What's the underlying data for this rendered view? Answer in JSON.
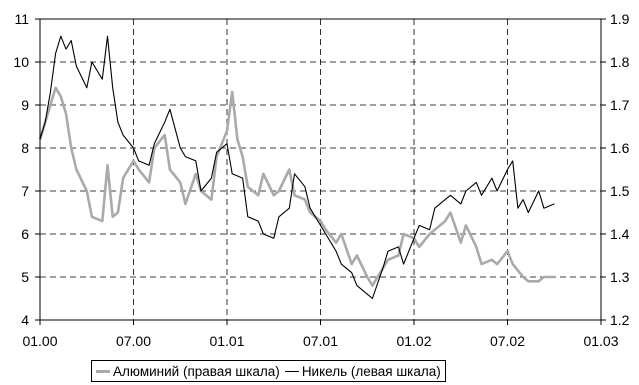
{
  "chart_data": {
    "type": "line",
    "title": "",
    "x_ticks": [
      "01.00",
      "07.00",
      "01.01",
      "07.01",
      "01.02",
      "07.02",
      "01.03"
    ],
    "y_left": {
      "ticks": [
        4,
        5,
        6,
        7,
        8,
        9,
        10,
        11
      ],
      "range": [
        4,
        11
      ]
    },
    "y_right": {
      "ticks": [
        1.2,
        1.3,
        1.4,
        1.5,
        1.6,
        1.7,
        1.8,
        1.9
      ],
      "range": [
        1.2,
        1.9
      ]
    },
    "grid": "dashed",
    "legend_position": "bottom",
    "series": [
      {
        "name": "Алюминий (правая шкала)",
        "axis": "right",
        "color": "#aaaaaa",
        "points": [
          [
            "01.00",
            1.62
          ],
          [
            "01.00+",
            1.66
          ],
          [
            "02.00",
            1.74
          ],
          [
            "02.00+",
            1.72
          ],
          [
            "02.00++",
            1.68
          ],
          [
            "03.00",
            1.6
          ],
          [
            "03.00+",
            1.55
          ],
          [
            "04.00",
            1.5
          ],
          [
            "04.00+",
            1.44
          ],
          [
            "05.00",
            1.43
          ],
          [
            "05.00+",
            1.56
          ],
          [
            "05.00++",
            1.44
          ],
          [
            "06.00",
            1.45
          ],
          [
            "06.00+",
            1.53
          ],
          [
            "07.00",
            1.57
          ],
          [
            "07.00+",
            1.55
          ],
          [
            "08.00",
            1.52
          ],
          [
            "08.00+",
            1.6
          ],
          [
            "09.00",
            1.63
          ],
          [
            "09.00+",
            1.55
          ],
          [
            "10.00",
            1.52
          ],
          [
            "10.00+",
            1.47
          ],
          [
            "11.00",
            1.54
          ],
          [
            "11.00+",
            1.5
          ],
          [
            "12.00",
            1.48
          ],
          [
            "12.00+",
            1.58
          ],
          [
            "01.01",
            1.64
          ],
          [
            "01.01+",
            1.73
          ],
          [
            "01.01++",
            1.62
          ],
          [
            "02.01",
            1.58
          ],
          [
            "02.01+",
            1.51
          ],
          [
            "03.01",
            1.49
          ],
          [
            "03.01+",
            1.54
          ],
          [
            "04.01",
            1.49
          ],
          [
            "04.01+",
            1.5
          ],
          [
            "05.01",
            1.55
          ],
          [
            "05.01+",
            1.49
          ],
          [
            "06.01",
            1.48
          ],
          [
            "06.01+",
            1.45
          ],
          [
            "07.01",
            1.43
          ],
          [
            "07.01+",
            1.41
          ],
          [
            "08.01",
            1.38
          ],
          [
            "08.01+",
            1.4
          ],
          [
            "09.01",
            1.33
          ],
          [
            "09.01+",
            1.35
          ],
          [
            "10.01",
            1.3
          ],
          [
            "10.01+",
            1.28
          ],
          [
            "11.01",
            1.32
          ],
          [
            "11.01+",
            1.34
          ],
          [
            "12.01",
            1.35
          ],
          [
            "12.01+",
            1.4
          ],
          [
            "01.02",
            1.39
          ],
          [
            "01.02+",
            1.37
          ],
          [
            "02.02",
            1.4
          ],
          [
            "02.02+",
            1.41
          ],
          [
            "03.02",
            1.43
          ],
          [
            "03.02+",
            1.45
          ],
          [
            "04.02",
            1.38
          ],
          [
            "04.02+",
            1.42
          ],
          [
            "05.02",
            1.37
          ],
          [
            "05.02+",
            1.33
          ],
          [
            "06.02",
            1.34
          ],
          [
            "06.02+",
            1.33
          ],
          [
            "07.02",
            1.36
          ],
          [
            "07.02+",
            1.33
          ],
          [
            "08.02",
            1.3
          ],
          [
            "08.02+",
            1.29
          ],
          [
            "09.02",
            1.29
          ],
          [
            "09.02+",
            1.3
          ],
          [
            "10.02",
            1.3
          ]
        ]
      },
      {
        "name": "Никель (левая шкала)",
        "axis": "left",
        "color": "#000000",
        "points": [
          [
            "01.00",
            8.2
          ],
          [
            "01.00+",
            8.6
          ],
          [
            "01.00++",
            9.3
          ],
          [
            "02.00",
            10.2
          ],
          [
            "02.00+",
            10.6
          ],
          [
            "02.00++",
            10.3
          ],
          [
            "03.00",
            10.5
          ],
          [
            "03.00+",
            9.9
          ],
          [
            "04.00",
            9.4
          ],
          [
            "04.00+",
            10.0
          ],
          [
            "05.00",
            9.6
          ],
          [
            "05.00+",
            10.6
          ],
          [
            "05.00++",
            9.4
          ],
          [
            "06.00",
            8.6
          ],
          [
            "06.00+",
            8.3
          ],
          [
            "07.00",
            8.0
          ],
          [
            "07.00+",
            7.7
          ],
          [
            "08.00",
            7.6
          ],
          [
            "08.00+",
            8.1
          ],
          [
            "09.00",
            8.6
          ],
          [
            "09.00+",
            8.9
          ],
          [
            "10.00",
            8.0
          ],
          [
            "10.00+",
            7.8
          ],
          [
            "11.00",
            7.7
          ],
          [
            "11.00+",
            7.0
          ],
          [
            "12.00",
            7.3
          ],
          [
            "12.00+",
            7.9
          ],
          [
            "01.01",
            8.1
          ],
          [
            "01.01+",
            7.4
          ],
          [
            "02.01",
            7.3
          ],
          [
            "02.01+",
            6.4
          ],
          [
            "03.01",
            6.3
          ],
          [
            "03.01+",
            6.0
          ],
          [
            "04.01",
            5.9
          ],
          [
            "04.01+",
            6.4
          ],
          [
            "05.01",
            6.6
          ],
          [
            "05.01+",
            7.4
          ],
          [
            "06.01",
            7.1
          ],
          [
            "06.01+",
            6.6
          ],
          [
            "07.01",
            6.2
          ],
          [
            "07.01+",
            6.0
          ],
          [
            "08.01",
            5.6
          ],
          [
            "08.01+",
            5.3
          ],
          [
            "09.01",
            5.1
          ],
          [
            "09.01+",
            4.8
          ],
          [
            "10.01",
            4.6
          ],
          [
            "10.01+",
            4.5
          ],
          [
            "11.01",
            5.2
          ],
          [
            "11.01+",
            5.6
          ],
          [
            "12.01",
            5.7
          ],
          [
            "12.01+",
            5.3
          ],
          [
            "01.02",
            5.9
          ],
          [
            "01.02+",
            6.2
          ],
          [
            "02.02",
            6.1
          ],
          [
            "02.02+",
            6.6
          ],
          [
            "03.02",
            6.8
          ],
          [
            "03.02+",
            6.9
          ],
          [
            "04.02",
            6.7
          ],
          [
            "04.02+",
            7.0
          ],
          [
            "05.02",
            7.2
          ],
          [
            "05.02+",
            6.9
          ],
          [
            "06.02",
            7.3
          ],
          [
            "06.02+",
            7.0
          ],
          [
            "07.02",
            7.5
          ],
          [
            "07.02+",
            7.7
          ],
          [
            "07.02++",
            6.6
          ],
          [
            "08.02",
            6.8
          ],
          [
            "08.02+",
            6.5
          ],
          [
            "09.02",
            7.0
          ],
          [
            "09.02+",
            6.6
          ],
          [
            "10.02",
            6.7
          ]
        ]
      }
    ]
  }
}
